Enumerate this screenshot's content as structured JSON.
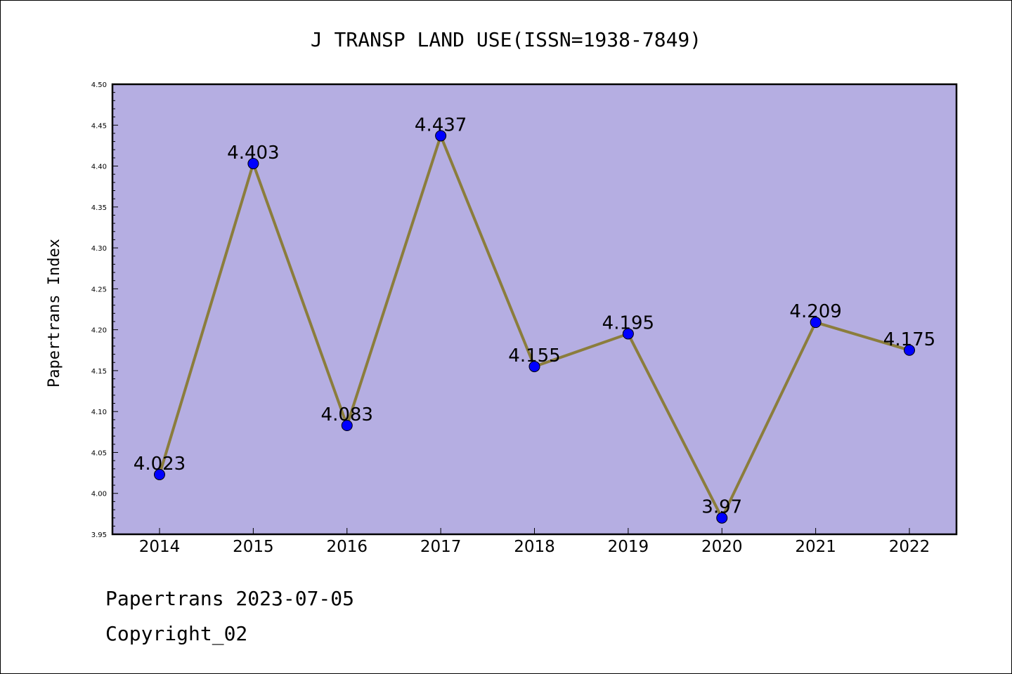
{
  "footer": {
    "line1": "Papertrans 2023-07-05",
    "line2": "Copyright_02"
  },
  "chart_data": {
    "type": "line",
    "title": "J TRANSP LAND USE(ISSN=1938-7849)",
    "xlabel": "",
    "ylabel": "Papertrans Index",
    "categories": [
      "2014",
      "2015",
      "2016",
      "2017",
      "2018",
      "2019",
      "2020",
      "2021",
      "2022"
    ],
    "series": [
      {
        "values": [
          4.023,
          4.403,
          4.083,
          4.437,
          4.155,
          4.195,
          3.97,
          4.209,
          4.175
        ],
        "labels": [
          "4.023",
          "4.403",
          "4.083",
          "4.437",
          "4.155",
          "4.195",
          "3.97",
          "4.209",
          "4.175"
        ]
      }
    ],
    "ylim": [
      3.95,
      4.5
    ],
    "yticks": [
      "3.95",
      "4.00",
      "4.05",
      "4.10",
      "4.15",
      "4.20",
      "4.25",
      "4.30",
      "4.35",
      "4.40",
      "4.45",
      "4.50"
    ],
    "grid": false,
    "colors": {
      "plot_background": "#b5aee2",
      "line": "#8b7d3c",
      "marker": "#0000ff"
    }
  }
}
